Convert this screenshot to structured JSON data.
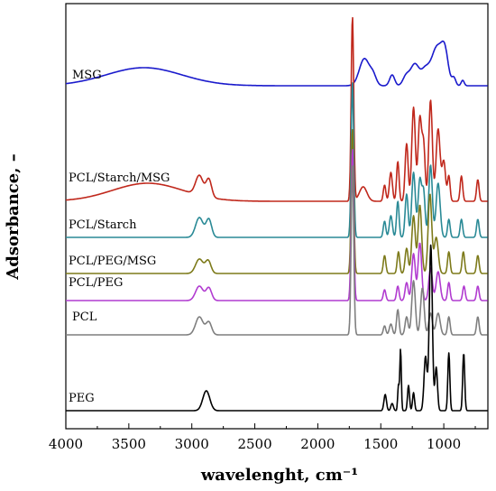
{
  "chart_data": {
    "type": "line",
    "xlabel": "wavelenght, cm⁻¹",
    "ylabel": "Adsorbance, –",
    "xlim": [
      4000,
      650
    ],
    "x_reversed": true,
    "x_ticks": [
      4000,
      3500,
      3000,
      2500,
      2000,
      1500,
      1000
    ],
    "x_tick_labels": [
      "4000",
      "3500",
      "3000",
      "2500",
      "2000",
      "1500",
      "1000"
    ],
    "y_ticks_shown": false,
    "grid": false,
    "legend": "inline labels",
    "series": [
      {
        "name": "MSG",
        "color": "#1a1acc",
        "baseline": 9.2,
        "features": [
          [
            3380,
            0.5,
            300
          ],
          [
            1630,
            0.75,
            40
          ],
          [
            1560,
            0.25,
            25
          ],
          [
            1410,
            0.3,
            20
          ],
          [
            1300,
            0.25,
            25
          ],
          [
            1230,
            0.6,
            35
          ],
          [
            1150,
            0.35,
            30
          ],
          [
            1050,
            1.1,
            50
          ],
          [
            990,
            0.6,
            25
          ],
          [
            920,
            0.2,
            15
          ],
          [
            850,
            0.15,
            12
          ]
        ]
      },
      {
        "name": "PCL/Starch/MSG",
        "color": "#c0281c",
        "baseline": 6.0,
        "features": [
          [
            3350,
            0.5,
            280
          ],
          [
            2940,
            0.55,
            30
          ],
          [
            2865,
            0.5,
            22
          ],
          [
            1725,
            5.1,
            10
          ],
          [
            1640,
            0.4,
            30
          ],
          [
            1470,
            0.45,
            10
          ],
          [
            1420,
            0.8,
            12
          ],
          [
            1365,
            1.1,
            10
          ],
          [
            1295,
            1.6,
            12
          ],
          [
            1240,
            2.6,
            14
          ],
          [
            1190,
            2.3,
            14
          ],
          [
            1160,
            1.5,
            12
          ],
          [
            1105,
            2.8,
            14
          ],
          [
            1045,
            2.0,
            16
          ],
          [
            1000,
            1.1,
            14
          ],
          [
            960,
            0.7,
            10
          ],
          [
            860,
            0.7,
            10
          ],
          [
            730,
            0.6,
            10
          ]
        ]
      },
      {
        "name": "PCL/Starch",
        "color": "#2a8a96",
        "baseline": 5.0,
        "features": [
          [
            2940,
            0.55,
            30
          ],
          [
            2865,
            0.5,
            22
          ],
          [
            1725,
            4.3,
            10
          ],
          [
            1470,
            0.45,
            10
          ],
          [
            1420,
            0.6,
            12
          ],
          [
            1365,
            1.0,
            10
          ],
          [
            1295,
            1.2,
            12
          ],
          [
            1240,
            1.8,
            14
          ],
          [
            1190,
            1.6,
            14
          ],
          [
            1160,
            1.2,
            12
          ],
          [
            1105,
            2.0,
            14
          ],
          [
            1045,
            1.5,
            16
          ],
          [
            960,
            0.5,
            10
          ],
          [
            860,
            0.5,
            10
          ],
          [
            730,
            0.5,
            10
          ]
        ]
      },
      {
        "name": "PCL/PEG/MSG",
        "color": "#7d7a1a",
        "baseline": 4.0,
        "features": [
          [
            2940,
            0.4,
            30
          ],
          [
            2870,
            0.35,
            22
          ],
          [
            1725,
            4.0,
            10
          ],
          [
            1470,
            0.5,
            10
          ],
          [
            1360,
            0.6,
            10
          ],
          [
            1295,
            0.7,
            12
          ],
          [
            1240,
            1.6,
            14
          ],
          [
            1190,
            1.9,
            14
          ],
          [
            1110,
            2.2,
            14
          ],
          [
            1060,
            1.0,
            16
          ],
          [
            960,
            0.6,
            10
          ],
          [
            845,
            0.6,
            10
          ],
          [
            730,
            0.5,
            10
          ]
        ]
      },
      {
        "name": "PCL/PEG",
        "color": "#b13bd0",
        "baseline": 3.25,
        "features": [
          [
            2940,
            0.4,
            30
          ],
          [
            2865,
            0.35,
            22
          ],
          [
            1725,
            4.2,
            10
          ],
          [
            1470,
            0.3,
            10
          ],
          [
            1365,
            0.4,
            10
          ],
          [
            1295,
            0.5,
            12
          ],
          [
            1240,
            1.3,
            14
          ],
          [
            1190,
            1.6,
            14
          ],
          [
            1105,
            0.9,
            14
          ],
          [
            1045,
            0.8,
            16
          ],
          [
            960,
            0.5,
            10
          ],
          [
            840,
            0.4,
            10
          ],
          [
            730,
            0.4,
            10
          ]
        ]
      },
      {
        "name": "PCL",
        "color": "#7f7f7f",
        "baseline": 2.3,
        "features": [
          [
            2940,
            0.5,
            30
          ],
          [
            2865,
            0.35,
            22
          ],
          [
            1725,
            4.7,
            10
          ],
          [
            1470,
            0.25,
            10
          ],
          [
            1420,
            0.3,
            12
          ],
          [
            1365,
            0.7,
            10
          ],
          [
            1295,
            0.5,
            12
          ],
          [
            1240,
            1.5,
            14
          ],
          [
            1170,
            1.3,
            14
          ],
          [
            1105,
            0.6,
            14
          ],
          [
            1045,
            0.6,
            16
          ],
          [
            960,
            0.5,
            10
          ],
          [
            730,
            0.5,
            10
          ]
        ]
      },
      {
        "name": "PEG",
        "color": "#000000",
        "baseline": 0.2,
        "features": [
          [
            2885,
            0.55,
            28
          ],
          [
            1465,
            0.45,
            10
          ],
          [
            1410,
            0.2,
            10
          ],
          [
            1360,
            0.7,
            6
          ],
          [
            1343,
            1.7,
            6
          ],
          [
            1280,
            0.7,
            8
          ],
          [
            1240,
            0.5,
            8
          ],
          [
            1145,
            1.5,
            12
          ],
          [
            1103,
            4.6,
            12
          ],
          [
            1060,
            1.2,
            10
          ],
          [
            960,
            1.6,
            8
          ],
          [
            842,
            1.6,
            8
          ]
        ]
      }
    ]
  }
}
